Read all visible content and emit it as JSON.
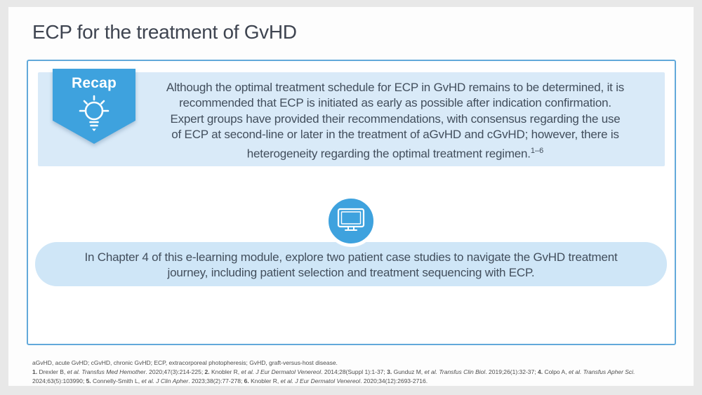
{
  "slide": {
    "title": "ECP for the treatment of GvHD"
  },
  "recap": {
    "badge_label": "Recap",
    "badge_icon": "lightbulb-icon",
    "lines": [
      "Although the optimal treatment schedule for ECP in GvHD remains to be determined, it is",
      "recommended that ECP is initiated as early as possible after indication confirmation.",
      "Expert groups have provided their recommendations, with consensus regarding the use",
      "of ECP at second-line or later in the treatment of aGvHD and cGvHD; however, there is",
      "heterogeneity regarding the optimal treatment regimen."
    ],
    "reference_superscript": "1–6"
  },
  "chapter": {
    "icon": "monitor-icon",
    "lines": [
      "In Chapter 4 of this e-learning module, explore two patient case studies to navigate the GvHD treatment",
      "journey, including patient selection and treatment sequencing with ECP."
    ]
  },
  "footnote": {
    "abbreviations": "aGvHD, acute GvHD; cGvHD, chronic GvHD; ECP, extracorporeal photopheresis; GvHD, graft-versus-host disease.",
    "reference_lines": [
      [
        {
          "t": "1. ",
          "b": true
        },
        {
          "t": "Drexler B, "
        },
        {
          "t": "et al. ",
          "i": true
        },
        {
          "t": "Transfus Med Hemother",
          "i": true
        },
        {
          "t": ". 2020;47(3):214-225; "
        },
        {
          "t": "2. ",
          "b": true
        },
        {
          "t": "Knobler R, "
        },
        {
          "t": "et al. ",
          "i": true
        },
        {
          "t": "J Eur Dermatol Venereol",
          "i": true
        },
        {
          "t": ". 2014;28(Suppl 1):1-37; "
        },
        {
          "t": "3. ",
          "b": true
        },
        {
          "t": "Gunduz M, "
        },
        {
          "t": "et al. ",
          "i": true
        },
        {
          "t": "Transfus Clin Biol",
          "i": true
        },
        {
          "t": ". 2019;26(1):32-37; "
        },
        {
          "t": "4. ",
          "b": true
        },
        {
          "t": "Colpo A, "
        },
        {
          "t": "et al. ",
          "i": true
        },
        {
          "t": "Transfus Apher Sci.",
          "i": true
        }
      ],
      [
        {
          "t": "2024;63(5):103990; "
        },
        {
          "t": "5. ",
          "b": true
        },
        {
          "t": "Connelly-Smith L, "
        },
        {
          "t": "et al. ",
          "i": true
        },
        {
          "t": "J Clin Apher",
          "i": true
        },
        {
          "t": ". 2023;38(2):77-278; "
        },
        {
          "t": "6. ",
          "b": true
        },
        {
          "t": "Knobler R, "
        },
        {
          "t": "et al. ",
          "i": true
        },
        {
          "t": "J Eur Dermatol Venereol",
          "i": true
        },
        {
          "t": ". 2020;34(12):2693-2716."
        }
      ]
    ]
  },
  "colors": {
    "accent_blue": "#3ea2de",
    "recap_panel_blue": "#d9eaf8",
    "chapter_box_blue": "#cfe6f7",
    "box_border_blue": "#62a9da",
    "title_text": "#3e4450",
    "body_text": "#424e5c",
    "footnote_text": "#4e4e4e",
    "page_background": "#e8e8e8",
    "slide_background": "#fdfdfd"
  }
}
